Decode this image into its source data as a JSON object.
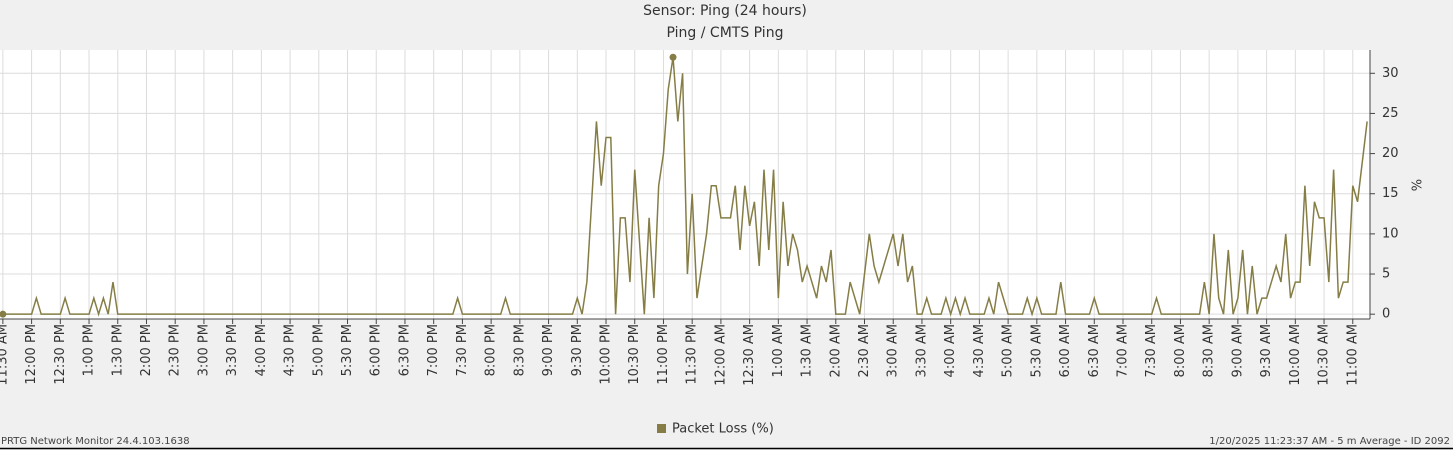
{
  "chart_data": {
    "type": "line",
    "title": "Sensor: Ping (24 hours)",
    "subtitle": "Ping / CMTS Ping",
    "y_label": "%",
    "footer_left": "PRTG Network Monitor 24.4.103.1638",
    "footer_right": "1/20/2025 11:23:37 AM - 5 m Average - ID 2092",
    "grid": true,
    "legend": "bottom",
    "xlim": [
      -3,
      1428
    ],
    "ylim": [
      -0.6,
      32.9
    ],
    "yticks": [
      0,
      5,
      10,
      15,
      20,
      25,
      30
    ],
    "xticks": [
      {
        "value": 0,
        "label": "11:30 AM"
      },
      {
        "value": 30,
        "label": "12:00 PM"
      },
      {
        "value": 60,
        "label": "12:30 PM"
      },
      {
        "value": 90,
        "label": "1:00 PM"
      },
      {
        "value": 120,
        "label": "1:30 PM"
      },
      {
        "value": 150,
        "label": "2:00 PM"
      },
      {
        "value": 180,
        "label": "2:30 PM"
      },
      {
        "value": 210,
        "label": "3:00 PM"
      },
      {
        "value": 240,
        "label": "3:30 PM"
      },
      {
        "value": 270,
        "label": "4:00 PM"
      },
      {
        "value": 300,
        "label": "4:30 PM"
      },
      {
        "value": 330,
        "label": "5:00 PM"
      },
      {
        "value": 360,
        "label": "5:30 PM"
      },
      {
        "value": 390,
        "label": "6:00 PM"
      },
      {
        "value": 420,
        "label": "6:30 PM"
      },
      {
        "value": 450,
        "label": "7:00 PM"
      },
      {
        "value": 480,
        "label": "7:30 PM"
      },
      {
        "value": 510,
        "label": "8:00 PM"
      },
      {
        "value": 540,
        "label": "8:30 PM"
      },
      {
        "value": 570,
        "label": "9:00 PM"
      },
      {
        "value": 600,
        "label": "9:30 PM"
      },
      {
        "value": 630,
        "label": "10:00 PM"
      },
      {
        "value": 660,
        "label": "10:30 PM"
      },
      {
        "value": 690,
        "label": "11:00 PM"
      },
      {
        "value": 720,
        "label": "11:30 PM"
      },
      {
        "value": 750,
        "label": "12:00 AM"
      },
      {
        "value": 780,
        "label": "12:30 AM"
      },
      {
        "value": 810,
        "label": "1:00 AM"
      },
      {
        "value": 840,
        "label": "1:30 AM"
      },
      {
        "value": 870,
        "label": "2:00 AM"
      },
      {
        "value": 900,
        "label": "2:30 AM"
      },
      {
        "value": 930,
        "label": "3:00 AM"
      },
      {
        "value": 960,
        "label": "3:30 AM"
      },
      {
        "value": 990,
        "label": "4:00 AM"
      },
      {
        "value": 1020,
        "label": "4:30 AM"
      },
      {
        "value": 1050,
        "label": "5:00 AM"
      },
      {
        "value": 1080,
        "label": "5:30 AM"
      },
      {
        "value": 1110,
        "label": "6:00 AM"
      },
      {
        "value": 1140,
        "label": "6:30 AM"
      },
      {
        "value": 1170,
        "label": "7:00 AM"
      },
      {
        "value": 1200,
        "label": "7:30 AM"
      },
      {
        "value": 1230,
        "label": "8:00 AM"
      },
      {
        "value": 1260,
        "label": "8:30 AM"
      },
      {
        "value": 1290,
        "label": "9:00 AM"
      },
      {
        "value": 1320,
        "label": "9:30 AM"
      },
      {
        "value": 1350,
        "label": "10:00 AM"
      },
      {
        "value": 1380,
        "label": "10:30 AM"
      },
      {
        "value": 1410,
        "label": "11:00 AM"
      }
    ],
    "series": [
      {
        "name": "Packet Loss (%)",
        "color": "#857d45",
        "x": [
          0,
          30,
          35,
          40,
          60,
          65,
          70,
          90,
          95,
          100,
          105,
          110,
          115,
          120,
          470,
          475,
          480,
          520,
          525,
          530,
          595,
          600,
          605,
          610,
          620,
          625,
          630,
          635,
          640,
          645,
          650,
          655,
          660,
          670,
          675,
          680,
          685,
          690,
          695,
          700,
          705,
          710,
          715,
          720,
          725,
          730,
          735,
          740,
          745,
          750,
          760,
          765,
          770,
          775,
          780,
          785,
          790,
          795,
          800,
          805,
          810,
          815,
          820,
          825,
          830,
          835,
          840,
          845,
          850,
          855,
          860,
          865,
          870,
          880,
          885,
          890,
          895,
          905,
          910,
          915,
          920,
          930,
          935,
          940,
          945,
          950,
          955,
          960,
          965,
          970,
          980,
          985,
          990,
          995,
          1000,
          1005,
          1010,
          1025,
          1030,
          1035,
          1040,
          1045,
          1050,
          1065,
          1070,
          1075,
          1080,
          1085,
          1100,
          1105,
          1110,
          1135,
          1140,
          1145,
          1200,
          1205,
          1210,
          1250,
          1255,
          1260,
          1265,
          1270,
          1275,
          1280,
          1285,
          1290,
          1295,
          1300,
          1305,
          1310,
          1315,
          1320,
          1325,
          1330,
          1335,
          1340,
          1345,
          1350,
          1355,
          1360,
          1365,
          1370,
          1375,
          1380,
          1385,
          1390,
          1395,
          1400,
          1405,
          1410,
          1415,
          1425
        ],
        "values": [
          0,
          0,
          2,
          0,
          0,
          2,
          0,
          0,
          2,
          0,
          2,
          0,
          4,
          0,
          0,
          2,
          0,
          0,
          2,
          0,
          0,
          2,
          0,
          4,
          24,
          16,
          22,
          22,
          0,
          12,
          12,
          4,
          18,
          0,
          12,
          2,
          16,
          20,
          28,
          32,
          24,
          30,
          5,
          15,
          2,
          6,
          10,
          16,
          16,
          12,
          12,
          16,
          8,
          16,
          11,
          14,
          6,
          18,
          8,
          18,
          2,
          14,
          6,
          10,
          8,
          4,
          6,
          4,
          2,
          6,
          4,
          8,
          0,
          0,
          4,
          2,
          0,
          10,
          6,
          4,
          6,
          10,
          6,
          10,
          4,
          6,
          0,
          0,
          2,
          0,
          0,
          2,
          0,
          2,
          0,
          2,
          0,
          0,
          2,
          0,
          4,
          2,
          0,
          0,
          2,
          0,
          2,
          0,
          0,
          4,
          0,
          0,
          2,
          0,
          0,
          2,
          0,
          0,
          4,
          0,
          10,
          2,
          0,
          8,
          0,
          2,
          8,
          0,
          6,
          0,
          2,
          2,
          4,
          6,
          4,
          10,
          2,
          4,
          4,
          16,
          6,
          14,
          12,
          12,
          4,
          18,
          2,
          4,
          4,
          16,
          14,
          24
        ]
      }
    ]
  }
}
